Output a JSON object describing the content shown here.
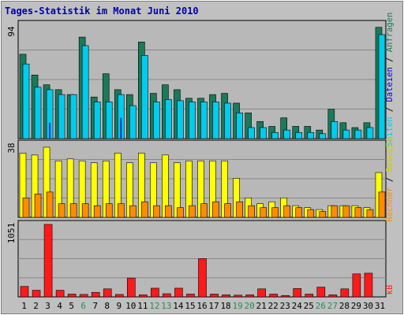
{
  "title": "Tages-Statistik im Monat Juni 2010",
  "colors": {
    "title": "#0000aa",
    "plot_bg": "#b8b8b8",
    "grid": "#888888",
    "requests": "#1a7a5a",
    "files": "#00ccee",
    "visits": "#ffff00",
    "sites": "#ff8c00",
    "kbytes": "#ff1a1a",
    "weekend_label": "#2a8a5a",
    "weekday_label": "#000000"
  },
  "legend": {
    "requests": "Anfragen",
    "files": "Dateien",
    "visits": "Besuche",
    "sites": "Seiten",
    "sites_color": "#00ccee",
    "visits_color": "#ffff00",
    "rechner": "Rechner",
    "kb": "kB",
    "sep": "/"
  },
  "chart_data": [
    {
      "type": "bar",
      "panel": "top",
      "ymax_label": "94",
      "ylim": [
        0,
        94
      ],
      "categories": [
        "1",
        "2",
        "3",
        "4",
        "5",
        "6",
        "7",
        "8",
        "9",
        "10",
        "11",
        "12",
        "13",
        "14",
        "15",
        "16",
        "17",
        "18",
        "19",
        "20",
        "21",
        "22",
        "23",
        "24",
        "25",
        "26",
        "27",
        "28",
        "29",
        "30",
        "31"
      ],
      "series": [
        {
          "name": "Anfragen",
          "values": [
            69,
            52,
            44,
            40,
            36,
            83,
            34,
            53,
            40,
            36,
            79,
            37,
            44,
            40,
            33,
            33,
            36,
            37,
            29,
            21,
            14,
            10,
            17,
            10,
            10,
            7,
            24,
            13,
            9,
            13,
            91
          ]
        },
        {
          "name": "Dateien",
          "values": [
            61,
            42,
            40,
            36,
            36,
            76,
            30,
            30,
            36,
            27,
            68,
            30,
            32,
            31,
            30,
            30,
            30,
            29,
            21,
            9,
            9,
            5,
            7,
            5,
            5,
            4,
            14,
            7,
            7,
            9,
            85
          ]
        },
        {
          "name": "Seiten",
          "values": [
            0,
            0,
            13,
            0,
            0,
            0,
            0,
            0,
            17,
            0,
            0,
            0,
            0,
            0,
            0,
            0,
            0,
            0,
            0,
            0,
            0,
            0,
            0,
            0,
            0,
            0,
            0,
            0,
            0,
            0,
            0
          ]
        }
      ]
    },
    {
      "type": "bar",
      "panel": "middle",
      "ymax_label": "38",
      "ylim": [
        0,
        38
      ],
      "categories": [
        "1",
        "2",
        "3",
        "4",
        "5",
        "6",
        "7",
        "8",
        "9",
        "10",
        "11",
        "12",
        "13",
        "14",
        "15",
        "16",
        "17",
        "18",
        "19",
        "20",
        "21",
        "22",
        "23",
        "24",
        "25",
        "26",
        "27",
        "28",
        "29",
        "30",
        "31"
      ],
      "series": [
        {
          "name": "Besuche",
          "values": [
            33,
            32,
            36,
            29,
            30,
            29,
            28,
            29,
            33,
            28,
            33,
            28,
            32,
            28,
            29,
            29,
            29,
            29,
            20,
            10,
            7,
            8,
            10,
            6,
            5,
            4,
            6,
            6,
            6,
            5,
            23
          ]
        },
        {
          "name": "Rechner",
          "values": [
            10,
            12,
            13,
            7,
            7,
            7,
            6,
            7,
            7,
            6,
            8,
            6,
            6,
            5,
            6,
            7,
            8,
            7,
            8,
            6,
            5,
            5,
            6,
            5,
            4,
            3,
            6,
            6,
            5,
            4,
            13
          ]
        }
      ]
    },
    {
      "type": "bar",
      "panel": "bottom",
      "ymax_label": "1051",
      "ylim": [
        0,
        1051
      ],
      "categories": [
        "1",
        "2",
        "3",
        "4",
        "5",
        "6",
        "7",
        "8",
        "9",
        "10",
        "11",
        "12",
        "13",
        "14",
        "15",
        "16",
        "17",
        "18",
        "19",
        "20",
        "21",
        "22",
        "23",
        "24",
        "25",
        "26",
        "27",
        "28",
        "29",
        "30",
        "31"
      ],
      "series": [
        {
          "name": "kB",
          "values": [
            150,
            95,
            1040,
            95,
            40,
            35,
            65,
            115,
            35,
            270,
            30,
            125,
            45,
            125,
            40,
            550,
            40,
            30,
            25,
            30,
            115,
            40,
            20,
            120,
            40,
            140,
            30,
            115,
            330,
            340,
            0
          ]
        }
      ]
    }
  ],
  "weekend_days": [
    6,
    12,
    13,
    19,
    20,
    26,
    27
  ]
}
